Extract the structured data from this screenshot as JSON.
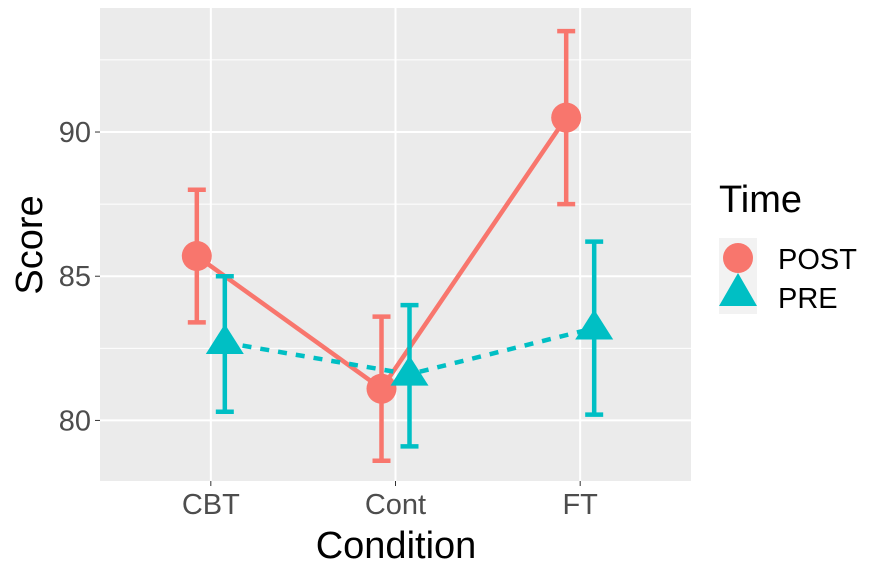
{
  "chart_data": {
    "type": "line",
    "title": "",
    "xlabel": "Condition",
    "ylabel": "Score",
    "categories": [
      "CBT",
      "Cont",
      "FT"
    ],
    "ylim": [
      77.9,
      94.3
    ],
    "yticks": [
      80,
      85,
      90
    ],
    "ytick_labels": [
      "80",
      "85",
      "90"
    ],
    "grid": true,
    "legend": {
      "title": "Time",
      "placement": "right"
    },
    "series": [
      {
        "name": "POST",
        "color": "#F8766D",
        "marker": "circle",
        "linestyle": "solid",
        "values": [
          85.7,
          81.1,
          90.5
        ],
        "error_low": [
          83.4,
          78.6,
          87.5
        ],
        "error_high": [
          88.0,
          83.6,
          93.5
        ]
      },
      {
        "name": "PRE",
        "color": "#00BFC4",
        "marker": "triangle",
        "linestyle": "dashed",
        "values": [
          82.7,
          81.6,
          83.2
        ],
        "error_low": [
          80.3,
          79.1,
          80.2
        ],
        "error_high": [
          85.0,
          84.0,
          86.2
        ]
      }
    ]
  }
}
